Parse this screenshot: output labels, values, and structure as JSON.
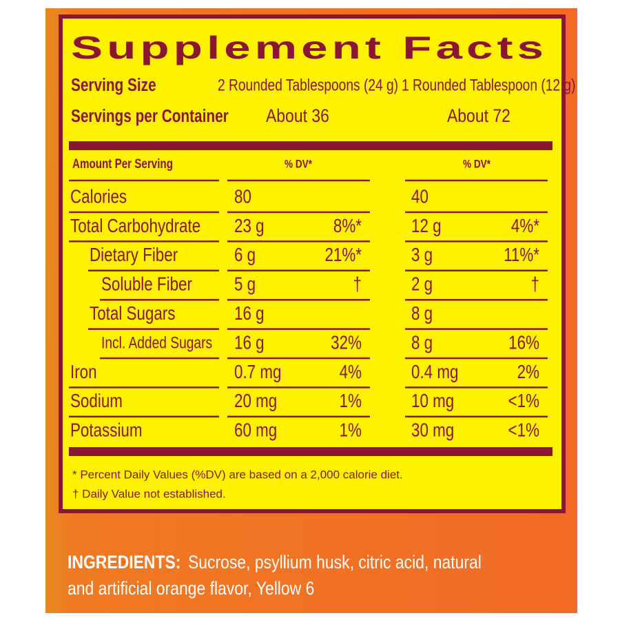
{
  "title": "Supplement Facts",
  "serving_size": {
    "label": "Serving Size",
    "col1": "2 Rounded Tablespoons (24 g)",
    "col2": "1 Rounded Tablespoon (12 g)"
  },
  "servings_per_container": {
    "label": "Servings per Container",
    "col1": "About 36",
    "col2": "About 72"
  },
  "header": {
    "label": "Amount Per Serving",
    "col1": "% DV*",
    "col2": "% DV*"
  },
  "rows": [
    {
      "name": "Calories",
      "amount1": "80",
      "amount2": "40"
    },
    {
      "name": "Total Carbohydrate",
      "amount1": "23 g",
      "dv1": "8%*",
      "amount2": "12 g",
      "dv2": "4%*"
    },
    {
      "name": "Dietary Fiber",
      "amount1": "6 g",
      "dv1": "21%*",
      "amount2": "3 g",
      "dv2": "11%*"
    },
    {
      "name": "Soluble Fiber",
      "amount1": "5 g",
      "dv1": "†",
      "amount2": "2 g",
      "dv2": "†"
    },
    {
      "name": "Total Sugars",
      "amount1": "16 g",
      "amount2": "8 g"
    },
    {
      "name": "Incl. Added Sugars",
      "amount1": "16 g",
      "dv1": "32%",
      "amount2": "8 g",
      "dv2": "16%"
    },
    {
      "name": "Iron",
      "amount1": "0.7 mg",
      "dv1": "4%",
      "amount2": "0.4 mg",
      "dv2": "2%"
    },
    {
      "name": "Sodium",
      "amount1": "20 mg",
      "dv1": "1%",
      "amount2": "10 mg",
      "dv2": "<1%"
    },
    {
      "name": "Potassium",
      "amount1": "60 mg",
      "dv1": "1%",
      "amount2": "30 mg",
      "dv2": "<1%"
    }
  ],
  "footnotes": [
    "* Percent Daily Values (%DV) are based on a 2,000 calorie diet.",
    "† Daily Value not established."
  ],
  "ingredients": {
    "label": "INGREDIENTS:",
    "line1": "Sucrose, psyllium husk, citric acid, natural",
    "line2": "and artificial orange flavor, Yellow 6"
  }
}
